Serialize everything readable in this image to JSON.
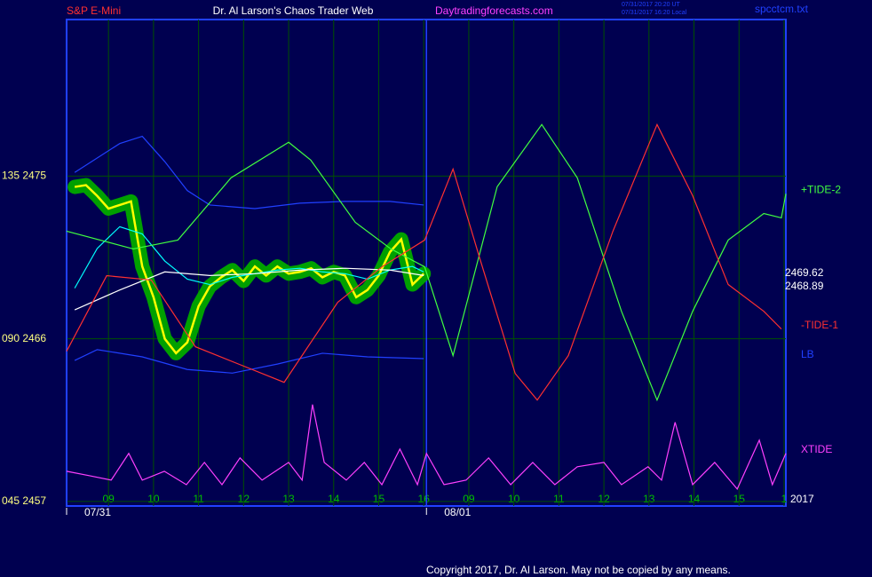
{
  "chart_data": {
    "type": "line",
    "symbol": "S&P E-Mini",
    "title": "Dr. Al Larson's Chaos Trader Web",
    "site": "Daytradingforecasts.com",
    "timestamps": [
      "07/31/2017 20:20 UT",
      "07/31/2017 16:20 Local"
    ],
    "file": "spcctcm.txt",
    "copyright": "Copyright 2017, Dr. Al Larson. May not be copied by any means.",
    "year": "2017",
    "xlim": [
      -0.93,
      15.04
    ],
    "ylim": [
      2456.75,
      2483.66
    ],
    "xticks": [
      {
        "value": 0,
        "label": "09"
      },
      {
        "value": 1,
        "label": "10"
      },
      {
        "value": 2,
        "label": "11"
      },
      {
        "value": 3,
        "label": "12"
      },
      {
        "value": 4,
        "label": "13"
      },
      {
        "value": 5,
        "label": "14"
      },
      {
        "value": 6,
        "label": "15"
      },
      {
        "value": 7,
        "label": "16"
      },
      {
        "value": 8,
        "label": "09"
      },
      {
        "value": 9,
        "label": "10"
      },
      {
        "value": 10,
        "label": "11"
      },
      {
        "value": 11,
        "label": "12"
      },
      {
        "value": 12,
        "label": "13"
      },
      {
        "value": 13,
        "label": "14"
      },
      {
        "value": 14,
        "label": "15"
      },
      {
        "value": 15,
        "label": "1"
      }
    ],
    "yticks": [
      {
        "value": 2475,
        "label": "135 2475"
      },
      {
        "value": 2466,
        "label": "090 2466"
      },
      {
        "value": 2457,
        "label": "045 2457"
      }
    ],
    "date_ticks": [
      {
        "value": -0.93,
        "label": "07/31"
      },
      {
        "value": 7.06,
        "label": "08/01"
      }
    ],
    "last_values": [
      2469.62,
      2468.89
    ],
    "grid": true,
    "series": [
      {
        "color": "#ffff00",
        "halo": "#00a000",
        "x": [
          -0.75,
          -0.5,
          -0.25,
          0,
          0.25,
          0.5,
          0.75,
          1,
          1.25,
          1.5,
          1.75,
          2,
          2.25,
          2.5,
          2.75,
          3,
          3.25,
          3.5,
          3.75,
          4,
          4.25,
          4.5,
          4.75,
          5,
          5.25,
          5.5,
          5.75,
          6,
          6.25,
          6.5,
          6.75,
          7
        ],
        "values": [
          2474.4,
          2474.5,
          2473.9,
          2473.2,
          2473.4,
          2473.6,
          2470.0,
          2468.3,
          2466.0,
          2465.2,
          2465.8,
          2467.8,
          2468.9,
          2469.4,
          2469.8,
          2469.2,
          2470.0,
          2469.5,
          2470.0,
          2469.6,
          2469.7,
          2469.9,
          2469.4,
          2469.7,
          2469.5,
          2468.3,
          2468.7,
          2469.5,
          2470.8,
          2471.5,
          2469.0,
          2469.6
        ]
      },
      {
        "color": "#00ffff",
        "x": [
          -0.75,
          -0.25,
          0.25,
          0.75,
          1.25,
          1.75,
          2.25,
          2.75,
          3.25,
          3.75,
          4.25,
          4.75,
          5.25,
          5.75,
          6.25,
          6.75,
          7
        ],
        "values": [
          2468.8,
          2471.0,
          2472.2,
          2471.8,
          2470.3,
          2469.3,
          2469.0,
          2469.4,
          2469.6,
          2469.8,
          2469.9,
          2469.7,
          2469.6,
          2469.3,
          2469.8,
          2470.0,
          2469.7
        ]
      },
      {
        "color": "#ffffff",
        "x": [
          -0.75,
          0.25,
          1.25,
          2.25,
          3.25,
          4.25,
          5.25,
          6.25,
          7
        ],
        "values": [
          2467.6,
          2468.7,
          2469.7,
          2469.5,
          2469.6,
          2469.8,
          2469.9,
          2469.8,
          2469.5
        ]
      },
      {
        "color": "#2040ff",
        "x": [
          -0.75,
          0.25,
          0.75,
          1.25,
          1.75,
          2.25,
          3.25,
          4.25,
          5.25,
          6.25,
          7
        ],
        "values": [
          2475.2,
          2476.8,
          2477.2,
          2475.8,
          2474.2,
          2473.4,
          2473.2,
          2473.5,
          2473.6,
          2473.6,
          2473.4
        ]
      },
      {
        "name": "LB",
        "color": "#2040ff",
        "x": [
          -0.75,
          -0.25,
          0.75,
          1.75,
          2.75,
          3.75,
          4.75,
          5.75,
          7
        ],
        "values": [
          2464.8,
          2465.4,
          2465.0,
          2464.3,
          2464.1,
          2464.6,
          2465.2,
          2465.0,
          2464.9
        ]
      },
      {
        "name": "+TIDE-2",
        "color": "#40ff40",
        "x": [
          -0.93,
          0.55,
          1.54,
          2.72,
          4.0,
          4.49,
          5.48,
          6.27,
          7.02,
          7.65,
          8.63,
          9.62,
          10.41,
          11.39,
          12.18,
          12.97,
          13.76,
          14.55,
          14.94,
          15.04
        ],
        "values": [
          2471.95,
          2470.97,
          2471.46,
          2474.9,
          2476.87,
          2475.89,
          2472.44,
          2470.97,
          2469.98,
          2465.07,
          2474.41,
          2477.85,
          2474.9,
          2467.52,
          2462.61,
          2467.52,
          2471.46,
          2472.93,
          2472.69,
          2474.02
        ]
      },
      {
        "name": "-TIDE-1",
        "color": "#ff3030",
        "x": [
          -0.93,
          -0.04,
          0.95,
          1.93,
          2.92,
          3.9,
          5.09,
          6.07,
          7.02,
          7.65,
          8.24,
          9.03,
          9.52,
          10.21,
          11.2,
          12.18,
          12.97,
          13.76,
          14.55,
          14.94
        ],
        "values": [
          2465.31,
          2469.49,
          2469.25,
          2465.56,
          2464.57,
          2463.59,
          2468.02,
          2469.98,
          2471.46,
          2475.39,
          2470.48,
          2464.08,
          2462.61,
          2465.07,
          2471.95,
          2477.85,
          2473.92,
          2469.0,
          2467.52,
          2466.54
        ]
      },
      {
        "name": "XTIDE",
        "color": "#ff40ff",
        "x": [
          -0.93,
          -0.43,
          0.06,
          0.45,
          0.75,
          1.24,
          1.73,
          2.13,
          2.52,
          2.92,
          3.41,
          4.0,
          4.3,
          4.53,
          4.79,
          5.28,
          5.68,
          6.07,
          6.47,
          6.86,
          7.06,
          7.45,
          7.94,
          8.44,
          8.93,
          9.42,
          9.91,
          10.41,
          11.0,
          11.39,
          11.98,
          12.28,
          12.58,
          12.97,
          13.46,
          13.96,
          14.45,
          14.74,
          15.04
        ],
        "values": [
          2458.67,
          2458.43,
          2458.18,
          2459.66,
          2458.18,
          2458.67,
          2457.93,
          2459.16,
          2457.93,
          2459.41,
          2458.18,
          2459.16,
          2458.18,
          2462.36,
          2459.16,
          2458.18,
          2459.16,
          2457.93,
          2459.9,
          2457.93,
          2459.66,
          2457.93,
          2458.18,
          2459.41,
          2457.93,
          2459.16,
          2457.93,
          2458.92,
          2459.16,
          2457.93,
          2458.92,
          2458.18,
          2461.38,
          2457.93,
          2459.16,
          2457.69,
          2460.39,
          2457.93,
          2459.66
        ]
      }
    ]
  }
}
